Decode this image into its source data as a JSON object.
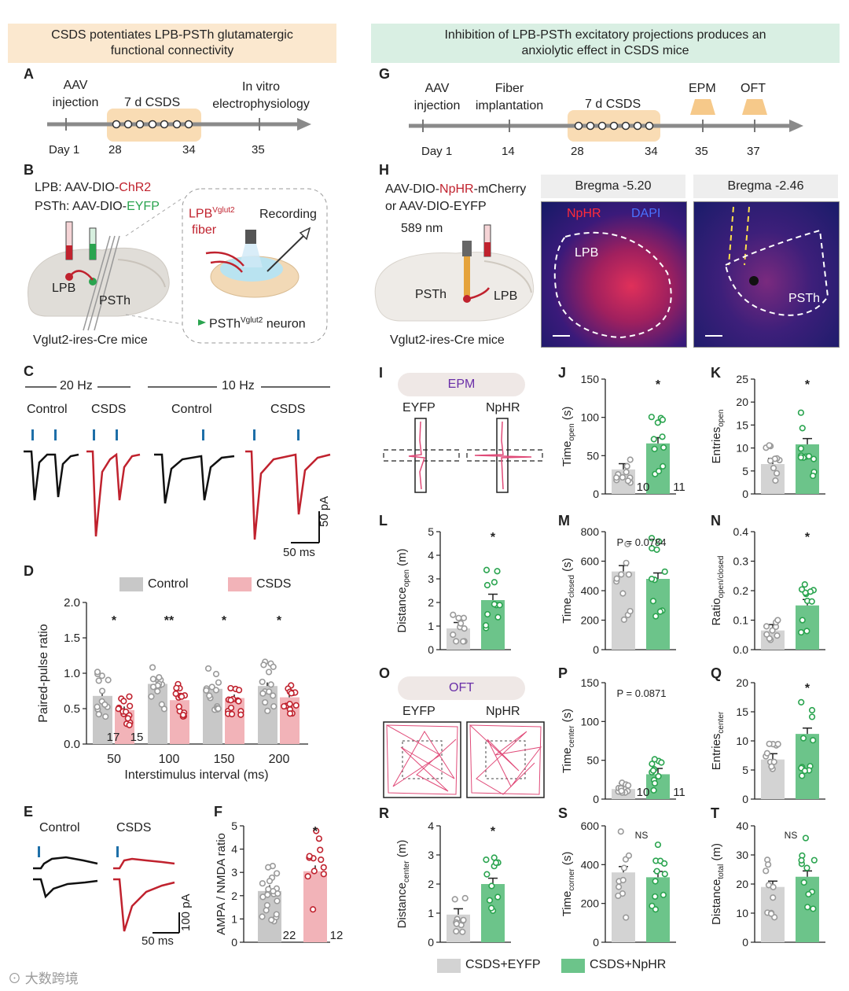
{
  "banners": {
    "left": "CSDS potentiates LPB-PSTh glutamatergic functional connectivity",
    "right": "Inhibition of LPB-PSTh excitatory projections produces an anxiolytic effect in CSDS mice"
  },
  "panel_letters": [
    "A",
    "B",
    "C",
    "D",
    "E",
    "F",
    "G",
    "H",
    "I",
    "J",
    "K",
    "L",
    "M",
    "N",
    "O",
    "P",
    "Q",
    "R",
    "S",
    "T"
  ],
  "timeline_a": {
    "events": [
      "AAV injection",
      "7 d CSDS",
      "In vitro electrophysiology"
    ],
    "days": [
      "Day 1",
      "28",
      "34",
      "35"
    ]
  },
  "timeline_g": {
    "events": [
      "AAV injection",
      "Fiber implantation",
      "7 d CSDS",
      "EPM",
      "OFT"
    ],
    "days": [
      "Day 1",
      "14",
      "28",
      "34",
      "35",
      "37"
    ]
  },
  "panel_b": {
    "lpb_text": "LPB: AAV-DIO-",
    "lpb_virus": "ChR2",
    "psth_text": "PSTh: AAV-DIO-",
    "psth_virus": "EYFP",
    "regions": [
      "LPB",
      "PSTh"
    ],
    "mouse": "Vglut2-ires-Cre mice",
    "fiber": "LPB",
    "fiber_sup": "Vglut2",
    "fiber2": "fiber",
    "recording": "Recording",
    "neuron": "PSTh",
    "neuron_sup": "Vglut2",
    "neuron2": " neuron"
  },
  "panel_c": {
    "freqs": [
      "20 Hz",
      "10 Hz"
    ],
    "groups": [
      "Control",
      "CSDS",
      "Control",
      "CSDS"
    ],
    "scale_y": "50 pA",
    "scale_x": "50 ms"
  },
  "panel_e": {
    "groups": [
      "Control",
      "CSDS"
    ],
    "scale_y": "100 pA",
    "scale_x": "50 ms"
  },
  "panel_h": {
    "virus_prefix": "AAV-DIO-",
    "virus_main": "NpHR",
    "virus_suffix": "-mCherry",
    "virus_alt": "or AAV-DIO-EYFP",
    "wavelength": "589 nm",
    "regions": [
      "PSTh",
      "LPB"
    ],
    "mouse": "Vglut2-ires-Cre mice",
    "image1_title": "Bregma -5.20",
    "image1_labels": [
      "NpHR",
      "DAPI",
      "LPB"
    ],
    "image2_title": "Bregma -2.46",
    "image2_labels": [
      "PSTh"
    ]
  },
  "panel_i": {
    "title": "EPM",
    "groups": [
      "EYFP",
      "NpHR"
    ]
  },
  "panel_o": {
    "title": "OFT",
    "groups": [
      "EYFP",
      "NpHR"
    ]
  },
  "legend": {
    "items": [
      "CSDS+EYFP",
      "CSDS+NpHR"
    ]
  },
  "watermark": "大数跨境",
  "colors": {
    "control": "#c8c8c8",
    "csds_red": "#f2b3b8",
    "red_dot": "#c0222e",
    "eyfp_gray": "#d3d3d3",
    "nphr_green": "#6cc48a",
    "green_dot": "#2aa44f"
  },
  "chart_data": [
    {
      "id": "D",
      "type": "bar",
      "ylabel": "Paired-pulse ratio",
      "xlabel": "Interstimulus interval (ms)",
      "categories": [
        "50",
        "100",
        "150",
        "200"
      ],
      "ylim": [
        0,
        2.0
      ],
      "yticks": [
        "0.0",
        "0.5",
        "1.0",
        "1.5",
        "2.0"
      ],
      "legend": [
        "Control",
        "CSDS"
      ],
      "series": [
        {
          "name": "Control",
          "values": [
            0.68,
            0.85,
            0.78,
            0.82
          ]
        },
        {
          "name": "CSDS",
          "values": [
            0.48,
            0.62,
            0.65,
            0.66
          ]
        }
      ],
      "significance": [
        "*",
        "**",
        "*",
        "*"
      ],
      "n": [
        "17",
        "15"
      ]
    },
    {
      "id": "F",
      "type": "bar",
      "ylabel": "AMPA / NMDA ratio",
      "ylim": [
        0,
        5
      ],
      "yticks": [
        "0",
        "1",
        "2",
        "3",
        "4",
        "5"
      ],
      "values": [
        2.2,
        3.05
      ],
      "significance": "*",
      "n": [
        "22",
        "12"
      ]
    },
    {
      "id": "J",
      "type": "bar",
      "ylabel_main": "Time",
      "ylabel_sub": "open",
      "ylabel_unit": " (s)",
      "ylim": [
        0,
        150
      ],
      "yticks": [
        "0",
        "50",
        "100",
        "150"
      ],
      "values": [
        32,
        66
      ],
      "significance": "*",
      "n": [
        "10",
        "11"
      ]
    },
    {
      "id": "K",
      "type": "bar",
      "ylabel_main": "Entries",
      "ylabel_sub": "open",
      "ylabel_unit": "",
      "ylim": [
        0,
        25
      ],
      "yticks": [
        "0",
        "5",
        "10",
        "15",
        "20",
        "25"
      ],
      "values": [
        6.5,
        10.8
      ],
      "significance": "*"
    },
    {
      "id": "L",
      "type": "bar",
      "ylabel_main": "Distance",
      "ylabel_sub": "open",
      "ylabel_unit": " (m)",
      "ylim": [
        0,
        5
      ],
      "yticks": [
        "0",
        "1",
        "2",
        "3",
        "4",
        "5"
      ],
      "values": [
        0.9,
        2.1
      ],
      "significance": "*"
    },
    {
      "id": "M",
      "type": "bar",
      "ylabel_main": "Time",
      "ylabel_sub": "closed",
      "ylabel_unit": " (s)",
      "ylim": [
        0,
        800
      ],
      "yticks": [
        "0",
        "200",
        "400",
        "600",
        "800"
      ],
      "values": [
        530,
        480
      ],
      "significance": "P = 0.0784"
    },
    {
      "id": "N",
      "type": "bar",
      "ylabel_main": "Ratio",
      "ylabel_sub": "open/closed",
      "ylabel_unit": "",
      "ylim": [
        0,
        0.4
      ],
      "yticks": [
        "0.0",
        "0.1",
        "0.2",
        "0.3",
        "0.4"
      ],
      "values": [
        0.065,
        0.15
      ],
      "significance": "*"
    },
    {
      "id": "P",
      "type": "bar",
      "ylabel_main": "Time",
      "ylabel_sub": "center",
      "ylabel_unit": " (s)",
      "ylim": [
        0,
        150
      ],
      "yticks": [
        "0",
        "50",
        "100",
        "150"
      ],
      "values": [
        13,
        32
      ],
      "significance": "P = 0.0871",
      "n": [
        "10",
        "11"
      ]
    },
    {
      "id": "Q",
      "type": "bar",
      "ylabel_main": "Entries",
      "ylabel_sub": "center",
      "ylabel_unit": "",
      "ylim": [
        0,
        20
      ],
      "yticks": [
        "0",
        "5",
        "10",
        "15",
        "20"
      ],
      "values": [
        6.8,
        11.2
      ],
      "significance": "*"
    },
    {
      "id": "R",
      "type": "bar",
      "ylabel_main": "Distance",
      "ylabel_sub": "center",
      "ylabel_unit": " (m)",
      "ylim": [
        0,
        4
      ],
      "yticks": [
        "0",
        "1",
        "2",
        "3",
        "4"
      ],
      "values": [
        0.95,
        2.0
      ],
      "significance": "*"
    },
    {
      "id": "S",
      "type": "bar",
      "ylabel_main": "Time",
      "ylabel_sub": "corner",
      "ylabel_unit": " (s)",
      "ylim": [
        0,
        600
      ],
      "yticks": [
        "0",
        "200",
        "400",
        "600"
      ],
      "values": [
        360,
        335
      ],
      "significance": "NS"
    },
    {
      "id": "T",
      "type": "bar",
      "ylabel_main": "Distance",
      "ylabel_sub": "total",
      "ylabel_unit": " (m)",
      "ylim": [
        0,
        40
      ],
      "yticks": [
        "0",
        "10",
        "20",
        "30",
        "40"
      ],
      "values": [
        19,
        22.5
      ],
      "significance": "NS"
    }
  ]
}
